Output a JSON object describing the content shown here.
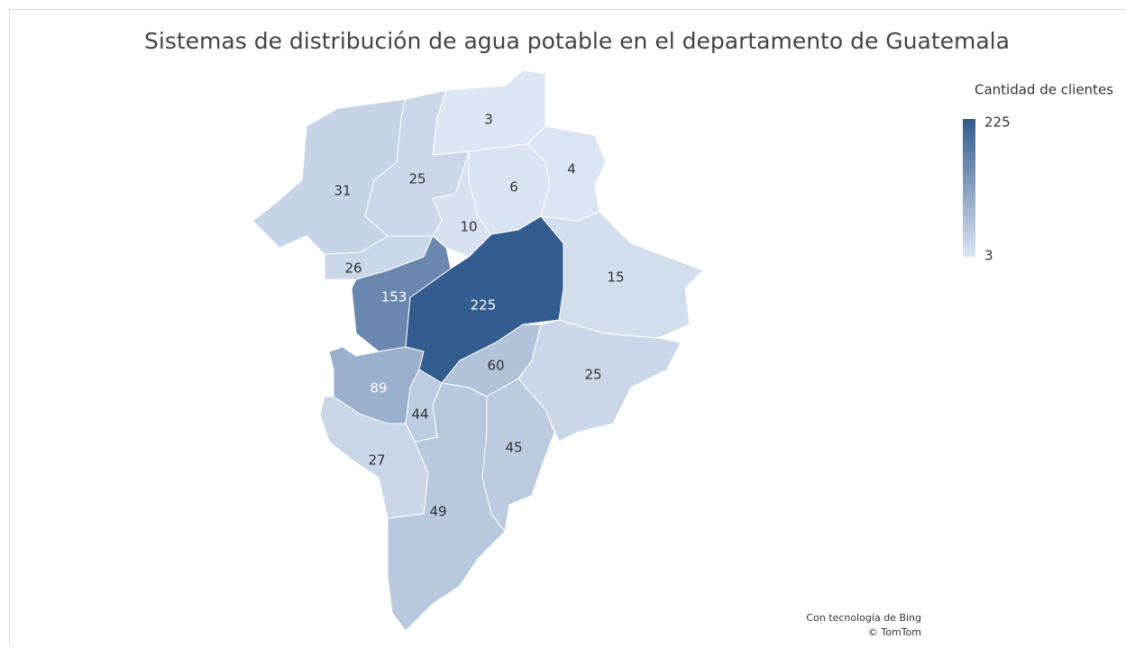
{
  "chart_data": {
    "type": "map",
    "title": "Sistemas de distribución de agua potable en el departamento de Guatemala",
    "legend_title": "Cantidad de clientes",
    "colorlim": [
      3,
      225
    ],
    "colors": [
      "#dce5f2",
      "#335c8f"
    ],
    "values": [
      3,
      4,
      6,
      25,
      31,
      10,
      26,
      15,
      153,
      225,
      60,
      25,
      89,
      44,
      45,
      27,
      49
    ],
    "credits": [
      "Con tecnología de Bing",
      "© TomTom"
    ]
  }
}
